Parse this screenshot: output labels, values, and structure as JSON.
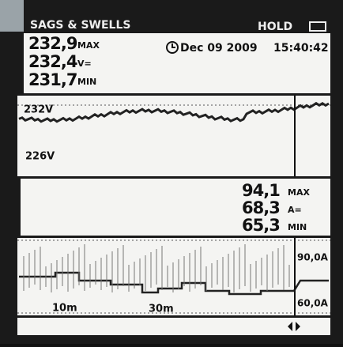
{
  "header": {
    "title": "SAGS & SWELLS",
    "status": "HOLD"
  },
  "voltage_panel": {
    "rows": [
      {
        "value": "232,9",
        "unit": "MAX"
      },
      {
        "value": "232,4",
        "unit": "V="
      },
      {
        "value": "231,7",
        "unit": "MIN"
      }
    ],
    "date": "Dec 09 2009",
    "time": "15:40:42"
  },
  "voltage_chart": {
    "top_label": "232V",
    "bottom_label": "226V"
  },
  "current_panel": {
    "rows": [
      {
        "value": "94,1",
        "unit": "MAX"
      },
      {
        "value": "68,3",
        "unit": "A="
      },
      {
        "value": "65,3",
        "unit": "MIN"
      }
    ]
  },
  "current_chart": {
    "top_label": "90,0A",
    "bottom_label": "60,0A",
    "time_labels": [
      "10m",
      "30m"
    ]
  }
}
